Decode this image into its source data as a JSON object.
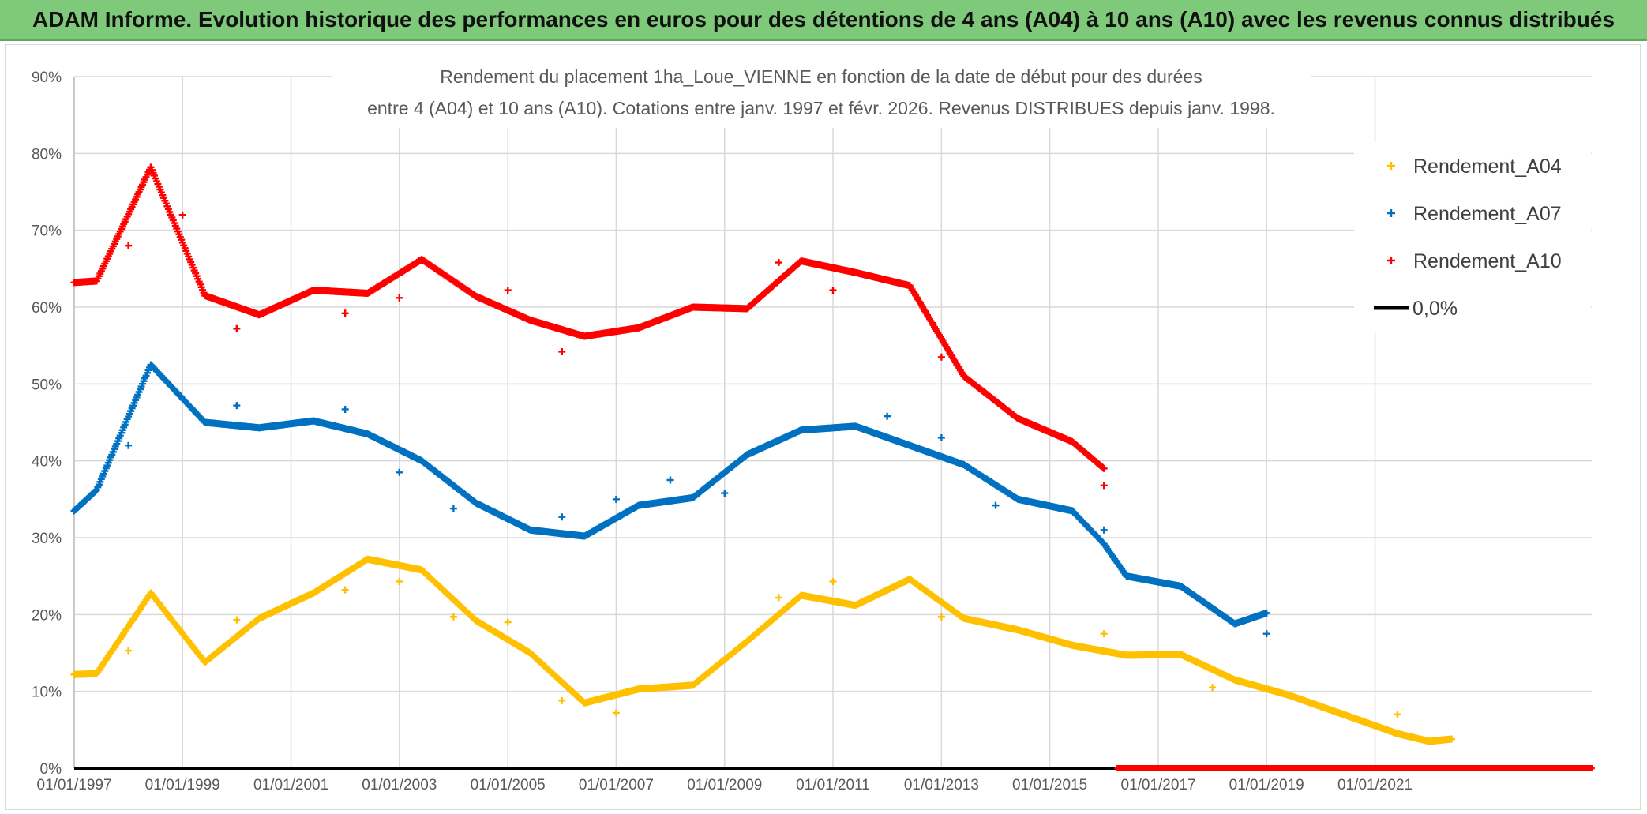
{
  "banner": {
    "title": "ADAM Informe. Evolution historique des performances en euros pour des détentions de 4 ans (A04) à 10 ans (A10) avec les revenus connus distribués"
  },
  "colors": {
    "A04": "#ffc000",
    "A07": "#0070c0",
    "A10": "#ff0000",
    "zero": "#000000",
    "grid": "#d9d9d9"
  },
  "chart_data": {
    "type": "scatter",
    "title": "Rendement du placement 1ha_Loue_VIENNE en fonction de la date de début pour des durées",
    "subtitle": "entre 4 (A04) et 10 ans (A10). Cotations entre janv. 1997 et févr. 2026. Revenus DISTRIBUES depuis janv. 1998.",
    "x_range": [
      "1997-01-01",
      "2024-12-31"
    ],
    "y_range": [
      0,
      0.9
    ],
    "y_ticks": [
      "0%",
      "10%",
      "20%",
      "30%",
      "40%",
      "50%",
      "60%",
      "70%",
      "80%",
      "90%"
    ],
    "y_tick_values": [
      0,
      0.1,
      0.2,
      0.3,
      0.4,
      0.5,
      0.6,
      0.7,
      0.8,
      0.9
    ],
    "x_ticks": [
      "01/01/1997",
      "01/01/1999",
      "01/01/2001",
      "01/01/2003",
      "01/01/2005",
      "01/01/2007",
      "01/01/2009",
      "01/01/2011",
      "01/01/2013",
      "01/01/2015",
      "01/01/2017",
      "01/01/2019",
      "01/01/2021"
    ],
    "x_tick_values": [
      "1997-01-01",
      "1999-01-01",
      "2001-01-01",
      "2003-01-01",
      "2005-01-01",
      "2007-01-01",
      "2009-01-01",
      "2011-01-01",
      "2013-01-01",
      "2015-01-01",
      "2017-01-01",
      "2019-01-01",
      "2021-01-01"
    ],
    "grid": true,
    "legend_position": "right",
    "series": [
      {
        "name": "Rendement_A04",
        "color": "#ffc000",
        "points": [
          [
            "1997-01-01",
            0.122
          ],
          [
            "1997-06-01",
            0.123
          ],
          [
            "1998-06-01",
            0.228
          ],
          [
            "1999-06-01",
            0.138
          ],
          [
            "2000-06-01",
            0.195
          ],
          [
            "2001-06-01",
            0.228
          ],
          [
            "2002-06-01",
            0.272
          ],
          [
            "2003-06-01",
            0.258
          ],
          [
            "2004-06-01",
            0.192
          ],
          [
            "2005-06-01",
            0.15
          ],
          [
            "2006-06-01",
            0.085
          ],
          [
            "2007-06-01",
            0.103
          ],
          [
            "2008-06-01",
            0.108
          ],
          [
            "2009-06-01",
            0.165
          ],
          [
            "2010-06-01",
            0.225
          ],
          [
            "2011-06-01",
            0.212
          ],
          [
            "2012-06-01",
            0.246
          ],
          [
            "2013-06-01",
            0.195
          ],
          [
            "2014-06-01",
            0.18
          ],
          [
            "2015-06-01",
            0.16
          ],
          [
            "2016-06-01",
            0.147
          ],
          [
            "2017-06-01",
            0.148
          ],
          [
            "2018-06-01",
            0.115
          ],
          [
            "2019-06-01",
            0.095
          ],
          [
            "2020-06-01",
            0.07
          ],
          [
            "2021-06-01",
            0.045
          ],
          [
            "2022-01-01",
            0.035
          ],
          [
            "2022-06-01",
            0.038
          ]
        ],
        "outliers": [
          [
            "1998-01-01",
            0.153
          ],
          [
            "2000-01-01",
            0.193
          ],
          [
            "2002-01-01",
            0.232
          ],
          [
            "2003-01-01",
            0.243
          ],
          [
            "2004-01-01",
            0.197
          ],
          [
            "2005-01-01",
            0.19
          ],
          [
            "2006-01-01",
            0.088
          ],
          [
            "2007-01-01",
            0.072
          ],
          [
            "2010-01-01",
            0.222
          ],
          [
            "2011-01-01",
            0.243
          ],
          [
            "2013-01-01",
            0.197
          ],
          [
            "2016-01-01",
            0.175
          ],
          [
            "2018-01-01",
            0.105
          ],
          [
            "2021-06-01",
            0.07
          ]
        ]
      },
      {
        "name": "Rendement_A07",
        "color": "#0070c0",
        "points": [
          [
            "1997-01-01",
            0.335
          ],
          [
            "1997-06-01",
            0.362
          ],
          [
            "1998-06-01",
            0.525
          ],
          [
            "1999-06-01",
            0.45
          ],
          [
            "2000-06-01",
            0.443
          ],
          [
            "2001-06-01",
            0.452
          ],
          [
            "2002-06-01",
            0.435
          ],
          [
            "2003-06-01",
            0.4
          ],
          [
            "2004-06-01",
            0.345
          ],
          [
            "2005-06-01",
            0.31
          ],
          [
            "2006-06-01",
            0.302
          ],
          [
            "2007-06-01",
            0.342
          ],
          [
            "2008-06-01",
            0.352
          ],
          [
            "2009-06-01",
            0.408
          ],
          [
            "2010-06-01",
            0.44
          ],
          [
            "2011-06-01",
            0.445
          ],
          [
            "2012-06-01",
            0.42
          ],
          [
            "2013-06-01",
            0.395
          ],
          [
            "2014-06-01",
            0.35
          ],
          [
            "2015-06-01",
            0.335
          ],
          [
            "2016-01-01",
            0.292
          ],
          [
            "2016-06-01",
            0.25
          ],
          [
            "2017-06-01",
            0.237
          ],
          [
            "2018-06-01",
            0.188
          ],
          [
            "2019-01-01",
            0.202
          ]
        ],
        "outliers": [
          [
            "1998-01-01",
            0.42
          ],
          [
            "1999-01-01",
            0.48
          ],
          [
            "2000-01-01",
            0.472
          ],
          [
            "2002-01-01",
            0.467
          ],
          [
            "2003-01-01",
            0.385
          ],
          [
            "2004-01-01",
            0.338
          ],
          [
            "2006-01-01",
            0.327
          ],
          [
            "2007-01-01",
            0.35
          ],
          [
            "2008-01-01",
            0.375
          ],
          [
            "2009-01-01",
            0.358
          ],
          [
            "2012-01-01",
            0.458
          ],
          [
            "2013-01-01",
            0.43
          ],
          [
            "2014-01-01",
            0.342
          ],
          [
            "2016-01-01",
            0.31
          ],
          [
            "2019-01-01",
            0.175
          ]
        ]
      },
      {
        "name": "Rendement_A10",
        "color": "#ff0000",
        "points": [
          [
            "1997-01-01",
            0.632
          ],
          [
            "1997-06-01",
            0.634
          ],
          [
            "1998-06-01",
            0.782
          ],
          [
            "1999-06-01",
            0.615
          ],
          [
            "2000-06-01",
            0.59
          ],
          [
            "2001-06-01",
            0.622
          ],
          [
            "2002-06-01",
            0.618
          ],
          [
            "2003-06-01",
            0.662
          ],
          [
            "2004-06-01",
            0.614
          ],
          [
            "2005-06-01",
            0.583
          ],
          [
            "2006-06-01",
            0.562
          ],
          [
            "2007-06-01",
            0.573
          ],
          [
            "2008-06-01",
            0.6
          ],
          [
            "2009-06-01",
            0.598
          ],
          [
            "2010-06-01",
            0.66
          ],
          [
            "2011-06-01",
            0.645
          ],
          [
            "2012-06-01",
            0.628
          ],
          [
            "2013-06-01",
            0.51
          ],
          [
            "2014-06-01",
            0.455
          ],
          [
            "2015-06-01",
            0.425
          ],
          [
            "2016-01-01",
            0.39
          ]
        ],
        "outliers": [
          [
            "1998-01-01",
            0.68
          ],
          [
            "1999-01-01",
            0.72
          ],
          [
            "2000-01-01",
            0.572
          ],
          [
            "2002-01-01",
            0.592
          ],
          [
            "2003-01-01",
            0.612
          ],
          [
            "2005-01-01",
            0.622
          ],
          [
            "2006-01-01",
            0.542
          ],
          [
            "2010-01-01",
            0.658
          ],
          [
            "2011-01-01",
            0.622
          ],
          [
            "2013-01-01",
            0.535
          ],
          [
            "2016-01-01",
            0.368
          ]
        ]
      },
      {
        "name": "0,0%",
        "color": "#000000",
        "points": [
          [
            "1997-01-01",
            0
          ],
          [
            "2024-12-31",
            0
          ]
        ]
      }
    ]
  }
}
